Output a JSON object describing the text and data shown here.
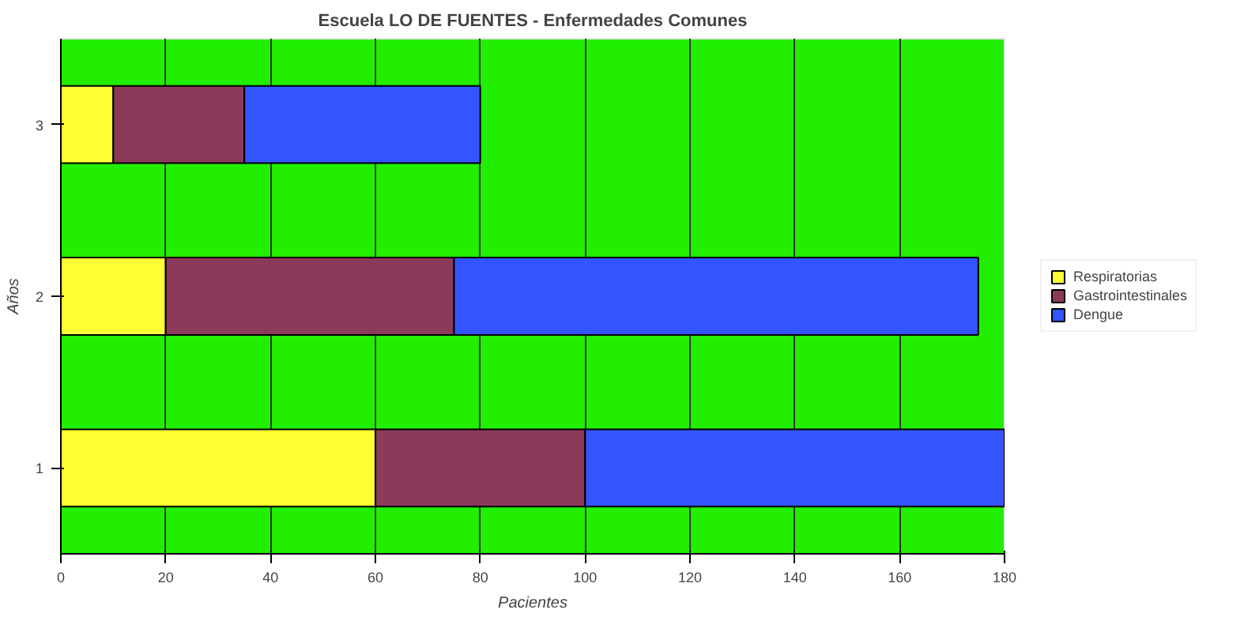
{
  "chart_data": {
    "type": "bar",
    "orientation": "horizontal",
    "stacked": true,
    "title": "Escuela LO DE FUENTES - Enfermedades Comunes",
    "xlabel": "Pacientes",
    "ylabel": "Años",
    "categories": [
      "3",
      "2",
      "1"
    ],
    "series": [
      {
        "name": "Respiratorias",
        "color": "#ffff33",
        "values": [
          10,
          20,
          60
        ]
      },
      {
        "name": "Gastrointestinales",
        "color": "#8b3a5a",
        "values": [
          25,
          55,
          40
        ]
      },
      {
        "name": "Dengue",
        "color": "#3355ff",
        "values": [
          45,
          100,
          80
        ]
      }
    ],
    "xlim": [
      0,
      180
    ],
    "xticks": [
      0,
      20,
      40,
      60,
      80,
      100,
      120,
      140,
      160,
      180
    ],
    "grid": "x",
    "legend": "right"
  }
}
